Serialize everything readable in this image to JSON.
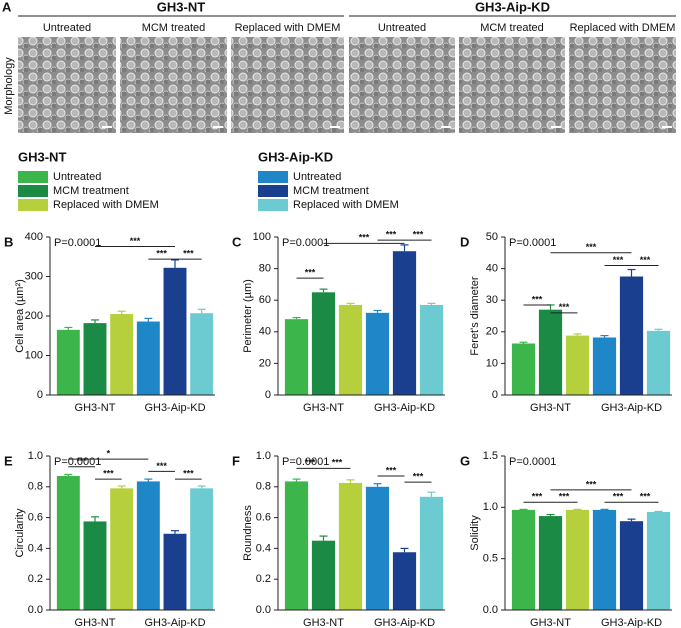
{
  "panel_a": {
    "label": "A",
    "row_label": "Morphology",
    "groups": [
      {
        "title": "GH3-NT",
        "images": [
          "Untreated",
          "MCM treated",
          "Replaced with DMEM"
        ]
      },
      {
        "title": "GH3-Aip-KD",
        "images": [
          "Untreated",
          "MCM treated",
          "Replaced with DMEM"
        ]
      }
    ]
  },
  "legend": [
    {
      "title": "GH3-NT",
      "items": [
        {
          "name": "Untreated",
          "color": "#3cb54a"
        },
        {
          "name": "MCM treatment",
          "color": "#1b8a45"
        },
        {
          "name": "Replaced with DMEM",
          "color": "#b6cf3c"
        }
      ]
    },
    {
      "title": "GH3-Aip-KD",
      "items": [
        {
          "name": "Untreated",
          "color": "#1f86c8"
        },
        {
          "name": "MCM treatment",
          "color": "#1b3f8f"
        },
        {
          "name": "Replaced with DMEM",
          "color": "#6ccad1"
        }
      ]
    }
  ],
  "chart_data": [
    {
      "type": "bar",
      "label": "B",
      "annotation": "P=0.0001",
      "ylabel": "Cell area (µm²)",
      "groups": [
        "GH3-NT",
        "GH3-Aip-KD"
      ],
      "values": [
        165,
        182,
        205,
        186,
        322,
        207
      ],
      "errors": [
        6,
        8,
        7,
        8,
        20,
        10
      ],
      "ylim": [
        0,
        400
      ],
      "yticks": [
        0,
        100,
        200,
        300,
        400
      ],
      "significance": [
        "***",
        "***",
        "***"
      ]
    },
    {
      "type": "bar",
      "label": "C",
      "annotation": "P=0.0001",
      "ylabel": "Perimeter (µm)",
      "groups": [
        "GH3-NT",
        "GH3-Aip-KD"
      ],
      "values": [
        48,
        65,
        57,
        52,
        91,
        57
      ],
      "errors": [
        1,
        2,
        1,
        1.5,
        4,
        1
      ],
      "ylim": [
        0,
        100
      ],
      "yticks": [
        0,
        20,
        40,
        60,
        80,
        100
      ],
      "significance": [
        "***",
        "***",
        "***",
        "***"
      ]
    },
    {
      "type": "bar",
      "label": "D",
      "annotation": "P=0.0001",
      "ylabel": "Feret's diameter",
      "groups": [
        "GH3-NT",
        "GH3-Aip-KD"
      ],
      "values": [
        16.3,
        27,
        18.8,
        18.2,
        37.5,
        20.3
      ],
      "errors": [
        0.4,
        1.5,
        0.5,
        0.6,
        2.2,
        0.5
      ],
      "ylim": [
        0,
        50
      ],
      "yticks": [
        0,
        10,
        20,
        30,
        40,
        50
      ],
      "significance": [
        "***",
        "***",
        "***",
        "***",
        "***"
      ]
    },
    {
      "type": "bar",
      "label": "E",
      "annotation": "P=0.0001",
      "ylabel": "Circularity",
      "groups": [
        "GH3-NT",
        "GH3-Aip-KD"
      ],
      "values": [
        0.87,
        0.575,
        0.79,
        0.835,
        0.495,
        0.79
      ],
      "errors": [
        0.01,
        0.03,
        0.015,
        0.015,
        0.02,
        0.015
      ],
      "ylim": [
        0,
        1
      ],
      "yticks": [
        {
          "value": 0,
          "label": "0.0"
        },
        0.2,
        0.4,
        0.6,
        0.8,
        {
          "value": 1,
          "label": "1.0"
        }
      ],
      "significance": [
        "***",
        "***",
        "*",
        "***",
        "***"
      ]
    },
    {
      "type": "bar",
      "label": "F",
      "annotation": "P=0.0001",
      "ylabel": "Roundness",
      "groups": [
        "GH3-NT",
        "GH3-Aip-KD"
      ],
      "values": [
        0.835,
        0.45,
        0.825,
        0.8,
        0.375,
        0.735
      ],
      "errors": [
        0.015,
        0.03,
        0.02,
        0.02,
        0.025,
        0.03
      ],
      "ylim": [
        0,
        1
      ],
      "yticks": [
        {
          "value": 0,
          "label": "0.0"
        },
        0.2,
        0.4,
        0.6,
        0.8,
        {
          "value": 1,
          "label": "1.0"
        }
      ],
      "significance": [
        "***",
        "***",
        "***",
        "***"
      ]
    },
    {
      "type": "bar",
      "label": "G",
      "annotation": "P=0.0001",
      "ylabel": "Solidity",
      "groups": [
        "GH3-NT",
        "GH3-Aip-KD"
      ],
      "values": [
        0.975,
        0.915,
        0.975,
        0.975,
        0.865,
        0.955
      ],
      "errors": [
        0.005,
        0.015,
        0.005,
        0.005,
        0.02,
        0.005
      ],
      "ylim": [
        0,
        1.5
      ],
      "yticks": [
        {
          "value": 0,
          "label": "0.0"
        },
        0.5,
        {
          "value": 1,
          "label": "1.0"
        },
        1.5
      ],
      "significance": [
        "***",
        "***",
        "***",
        "***",
        "***"
      ]
    }
  ]
}
